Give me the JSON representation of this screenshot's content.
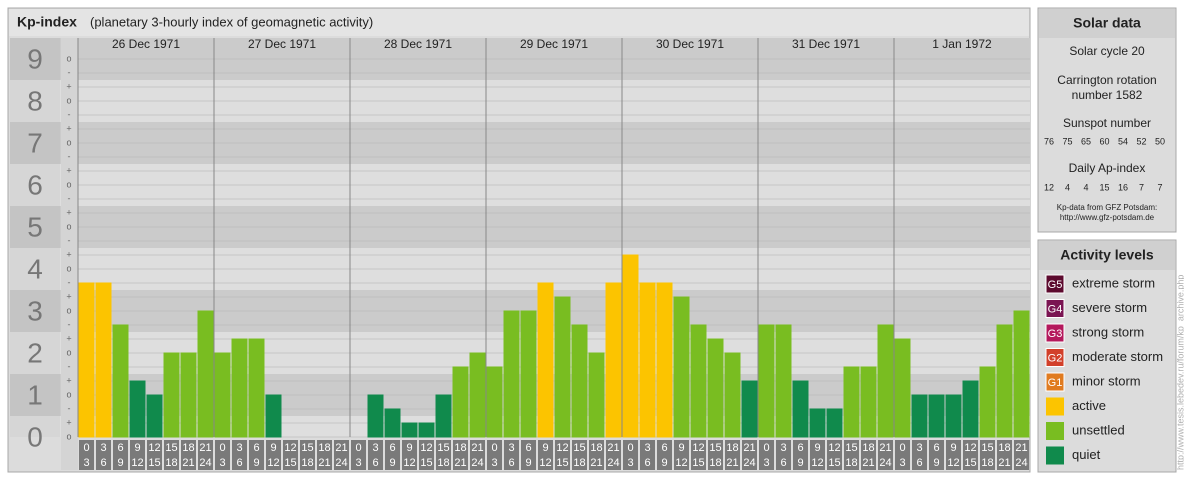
{
  "chart_data": {
    "type": "bar",
    "title": "Kp-index",
    "subtitle": "(planetary 3-hourly index of geomagnetic activity)",
    "days": [
      "26 Dec 1971",
      "27 Dec 1971",
      "28 Dec 1971",
      "29 Dec 1971",
      "30 Dec 1971",
      "31 Dec 1971",
      "1 Jan 1972"
    ],
    "hours_start": [
      "0",
      "3",
      "6",
      "9",
      "12",
      "15",
      "18",
      "21"
    ],
    "hours_end": [
      "3",
      "6",
      "9",
      "12",
      "15",
      "18",
      "21",
      "24"
    ],
    "values": [
      3.667,
      3.667,
      2.667,
      1.333,
      1,
      2,
      2,
      3,
      2,
      2.333,
      2.333,
      1,
      0,
      0,
      0,
      0,
      0,
      1,
      0.667,
      0.333,
      0.333,
      1,
      1.667,
      2,
      1.667,
      3,
      3,
      3.667,
      3.333,
      2.667,
      2,
      3.667,
      4.333,
      3.667,
      3.667,
      3.333,
      2.667,
      2.333,
      2,
      1.333,
      2.667,
      2.667,
      1.333,
      0.667,
      0.667,
      1.667,
      1.667,
      2.667,
      2.333,
      1,
      1,
      1,
      1.333,
      1.667,
      2.667,
      3
    ],
    "colors": [
      "#fcc400",
      "#fcc400",
      "#79bd21",
      "#108a4c",
      "#108a4c",
      "#79bd21",
      "#79bd21",
      "#79bd21",
      "#79bd21",
      "#79bd21",
      "#79bd21",
      "#108a4c",
      "#108a4c",
      "#108a4c",
      "#108a4c",
      "#108a4c",
      "#108a4c",
      "#108a4c",
      "#108a4c",
      "#108a4c",
      "#108a4c",
      "#108a4c",
      "#79bd21",
      "#79bd21",
      "#79bd21",
      "#79bd21",
      "#79bd21",
      "#fcc400",
      "#79bd21",
      "#79bd21",
      "#79bd21",
      "#fcc400",
      "#fcc400",
      "#fcc400",
      "#fcc400",
      "#79bd21",
      "#79bd21",
      "#79bd21",
      "#79bd21",
      "#108a4c",
      "#79bd21",
      "#79bd21",
      "#108a4c",
      "#108a4c",
      "#108a4c",
      "#79bd21",
      "#79bd21",
      "#79bd21",
      "#79bd21",
      "#108a4c",
      "#108a4c",
      "#108a4c",
      "#108a4c",
      "#79bd21",
      "#79bd21",
      "#79bd21"
    ],
    "ylim": [
      0,
      9.5
    ],
    "yticks": [
      0,
      1,
      2,
      3,
      4,
      5,
      6,
      7,
      8,
      9
    ],
    "minor_yticks": [
      {
        "value": 0,
        "label": "o"
      },
      {
        "value": 0.333,
        "label": "+"
      },
      {
        "value": 0.667,
        "label": "-"
      },
      {
        "value": 1,
        "label": "o"
      },
      {
        "value": 1.333,
        "label": "+"
      },
      {
        "value": 1.667,
        "label": "-"
      },
      {
        "value": 2,
        "label": "o"
      },
      {
        "value": 2.333,
        "label": "+"
      },
      {
        "value": 2.667,
        "label": "-"
      },
      {
        "value": 3,
        "label": "o"
      },
      {
        "value": 3.333,
        "label": "+"
      },
      {
        "value": 3.667,
        "label": "-"
      },
      {
        "value": 4,
        "label": "o"
      },
      {
        "value": 4.333,
        "label": "+"
      },
      {
        "value": 4.667,
        "label": "-"
      },
      {
        "value": 5,
        "label": "o"
      },
      {
        "value": 5.333,
        "label": "+"
      },
      {
        "value": 5.667,
        "label": "-"
      },
      {
        "value": 6,
        "label": "o"
      },
      {
        "value": 6.333,
        "label": "+"
      },
      {
        "value": 6.667,
        "label": "-"
      },
      {
        "value": 7,
        "label": "o"
      },
      {
        "value": 7.333,
        "label": "+"
      },
      {
        "value": 7.667,
        "label": "-"
      },
      {
        "value": 8,
        "label": "o"
      },
      {
        "value": 8.333,
        "label": "+"
      },
      {
        "value": 8.667,
        "label": "-"
      },
      {
        "value": 9,
        "label": "o"
      }
    ]
  },
  "solar_data": {
    "title": "Solar data",
    "solar_cycle": "Solar cycle 20",
    "carrington": [
      "Carrington rotation",
      "number 1582"
    ],
    "sunspot_label": "Sunspot number",
    "sunspot": [
      76,
      75,
      65,
      60,
      54,
      52,
      50
    ],
    "ap_label": "Daily Ap-index",
    "ap": [
      12,
      4,
      4,
      15,
      16,
      7,
      7
    ],
    "credit": [
      "Kp-data from GFZ Potsdam:",
      "http://www.gfz-potsdam.de"
    ]
  },
  "activity_levels": {
    "title": "Activity levels",
    "levels": [
      {
        "badge": "G5",
        "name": "extreme storm",
        "color": "#5c0a2e"
      },
      {
        "badge": "G4",
        "name": "severe storm",
        "color": "#7a1452"
      },
      {
        "badge": "G3",
        "name": "strong storm",
        "color": "#b4185c"
      },
      {
        "badge": "G2",
        "name": "moderate storm",
        "color": "#d2402a"
      },
      {
        "badge": "G1",
        "name": "minor storm",
        "color": "#e07b20"
      },
      {
        "name": "active",
        "color": "#fcc400"
      },
      {
        "name": "unsettled",
        "color": "#79bd21"
      },
      {
        "name": "quiet",
        "color": "#108a4c"
      }
    ]
  },
  "watermark": "http://www.tesis.lebedev.ru/forum/kp_archive.php"
}
